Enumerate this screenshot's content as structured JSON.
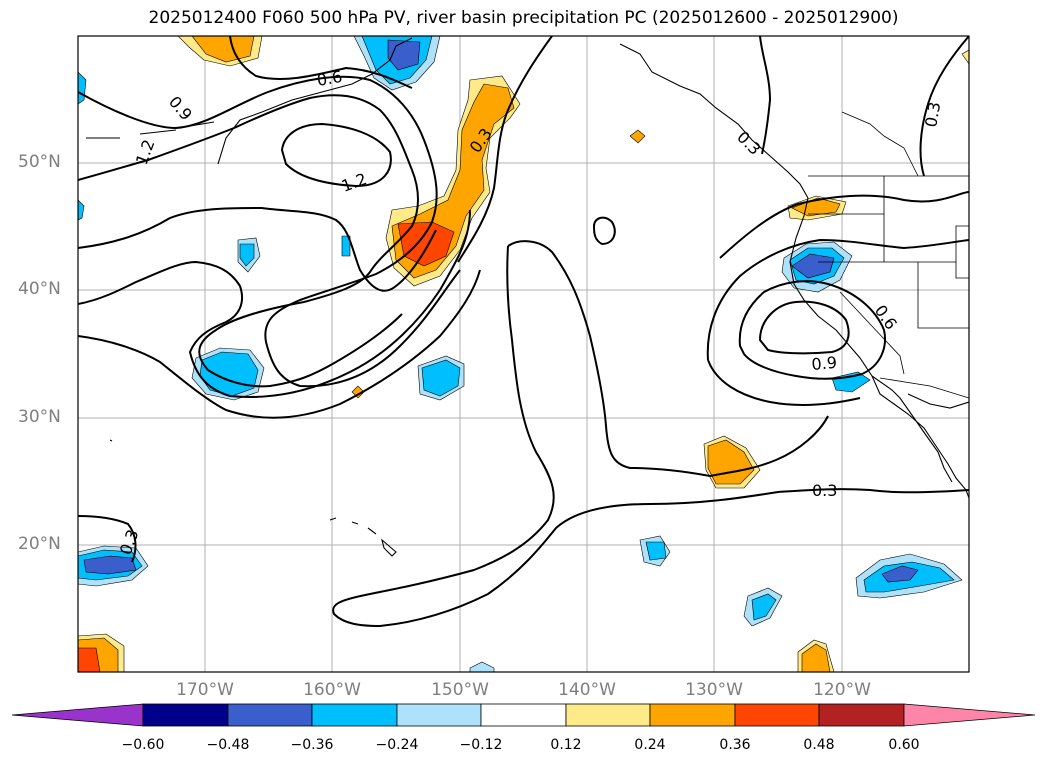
{
  "title": "2025012400 F060 500 hPa PV, river basin precipitation PC (2025012600 - 2025012900)",
  "axes": {
    "lat_labels": [
      "50°N",
      "40°N",
      "30°N",
      "20°N"
    ],
    "lon_labels": [
      "170°W",
      "160°W",
      "150°W",
      "140°W",
      "130°W",
      "120°W"
    ]
  },
  "contour_labels": [
    "0.6",
    "0.9",
    "1.2",
    "1.2",
    "0.3",
    "0.3",
    "0.3",
    "0.3",
    "0.6",
    "0.9",
    "0.3"
  ],
  "colorbar": {
    "ticks": [
      "−0.60",
      "−0.48",
      "−0.36",
      "−0.24",
      "−0.12",
      "0.12",
      "0.24",
      "0.36",
      "0.48",
      "0.60"
    ],
    "colors": [
      "#9933cc",
      "#00008b",
      "#3a5fcd",
      "#00bfff",
      "#ade2fa",
      "#ffffff",
      "#ffea8a",
      "#ffa500",
      "#ff4500",
      "#b22222",
      "#ff85a8"
    ]
  }
}
